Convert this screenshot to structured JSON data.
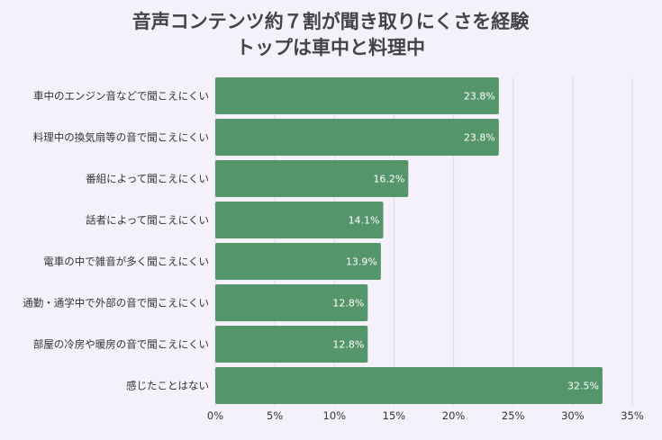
{
  "chart_data": {
    "type": "bar",
    "orientation": "horizontal",
    "title": "音声コンテンツ約７割が聞き取りにくさを経験",
    "subtitle": "トップは車中と料理中",
    "categories": [
      "車中のエンジン音などで聞こえにくい",
      "料理中の換気扇等の音で聞こえにくい",
      "番組によって聞こえにくい",
      "話者によって聞こえにくい",
      "電車の中で雑音が多く聞こえにくい",
      "通勤・通学中で外部の音で聞こえにくい",
      "部屋の冷房や暖房の音で聞こえにくい",
      "感じたことはない"
    ],
    "values": [
      23.8,
      23.8,
      16.2,
      14.1,
      13.9,
      12.8,
      12.8,
      32.5
    ],
    "value_labels": [
      "23.8%",
      "23.8%",
      "16.2%",
      "14.1%",
      "13.9%",
      "12.8%",
      "12.8%",
      "32.5%"
    ],
    "x_ticks": [
      "0%",
      "5%",
      "10%",
      "15%",
      "20%",
      "25%",
      "30%",
      "35%"
    ],
    "xlim": [
      0,
      35
    ],
    "grid": true,
    "legend": "none",
    "colors": {
      "bar": "#55956a",
      "grid": "#dcdae3",
      "background": "#f4f1fb"
    }
  }
}
